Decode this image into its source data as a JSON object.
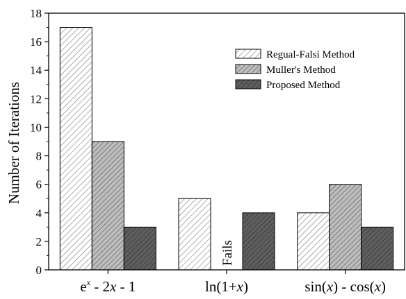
{
  "chart_data": {
    "type": "bar",
    "ylabel": "Number of  Iterations",
    "ylim": [
      0,
      18
    ],
    "y_ticks": [
      "0",
      "2",
      "4",
      "6",
      "8",
      "10",
      "12",
      "14",
      "16",
      "18"
    ],
    "grid": false,
    "legend_position": "top-right",
    "categories": [
      {
        "base": "e",
        "sup": "x",
        "rest": " - 2",
        "var": "x",
        "tail": " - 1"
      },
      {
        "base": "ln(1+",
        "var": "x",
        "tail": ")"
      },
      {
        "base": "sin(",
        "var": "x",
        "mid": ") - cos(",
        "var2": "x",
        "tail": ")"
      }
    ],
    "series": [
      {
        "name": "Regual-Falsi Method",
        "values": [
          17,
          5,
          4
        ],
        "color": "#ffffff",
        "hatch": "#7a7a7a"
      },
      {
        "name": "Muller's Method",
        "values": [
          9,
          null,
          6
        ],
        "color": "#bdbdbd",
        "hatch": "#555555"
      },
      {
        "name": "Proposed Method",
        "values": [
          3,
          4,
          3
        ],
        "color": "#5e5e5e",
        "hatch": "#2e2e2e"
      }
    ],
    "annotations": [
      {
        "text": "Fails",
        "category_index": 1,
        "series_index": 1
      }
    ]
  }
}
